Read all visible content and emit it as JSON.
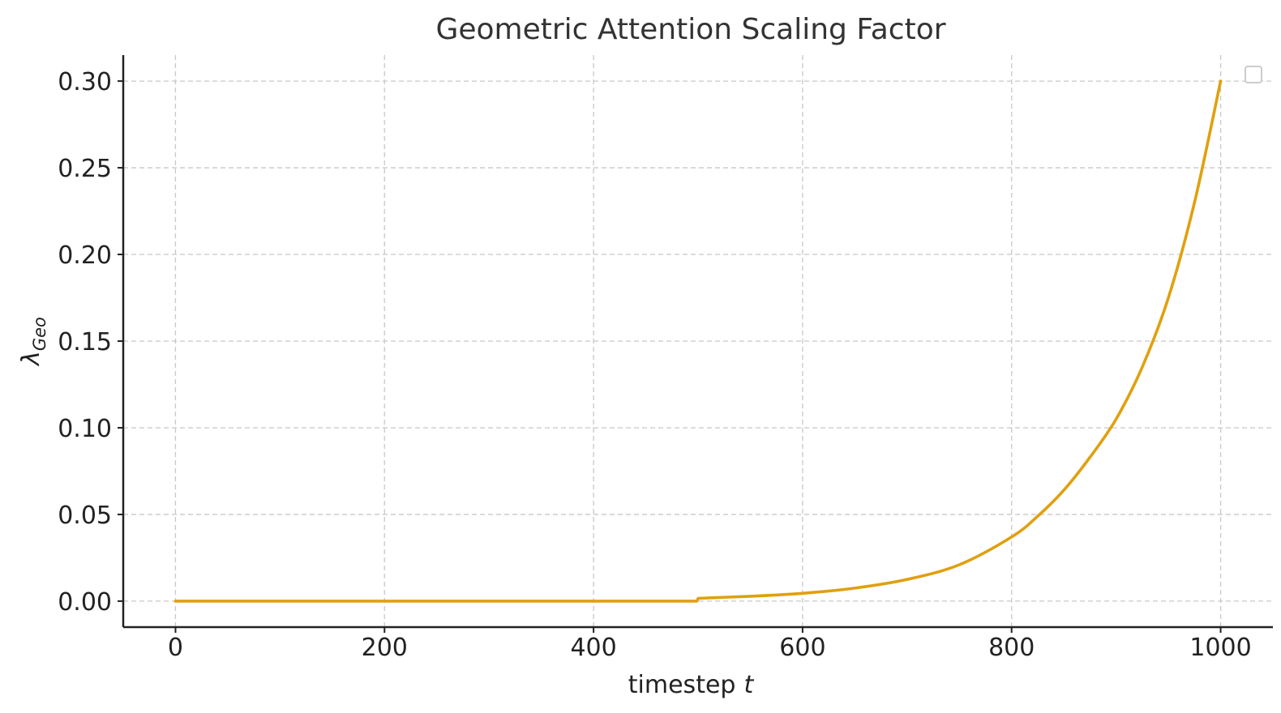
{
  "chart_data": {
    "type": "line",
    "title": "Geometric Attention Scaling Factor",
    "xlabel": "timestep",
    "xlabel_var": "t",
    "ylabel_base": "λ",
    "ylabel_sub": "Geo",
    "xlim": [
      -50,
      1050
    ],
    "ylim": [
      -0.015,
      0.315
    ],
    "xticks": [
      0,
      200,
      400,
      600,
      800,
      1000
    ],
    "yticks": [
      0.0,
      0.05,
      0.1,
      0.15,
      0.2,
      0.25,
      0.3
    ],
    "ytick_labels": [
      "0.00",
      "0.05",
      "0.10",
      "0.15",
      "0.20",
      "0.25",
      "0.30"
    ],
    "grid": true,
    "legend": "top-right (empty)",
    "series": [
      {
        "color": "#E0A00E",
        "x": [
          0,
          100,
          200,
          300,
          400,
          499,
          500,
          550,
          600,
          650,
          700,
          750,
          800,
          825,
          850,
          875,
          900,
          925,
          950,
          975,
          1000
        ],
        "y": [
          0,
          0,
          0,
          0,
          0,
          0,
          0.0016,
          0.0028,
          0.0045,
          0.0075,
          0.0125,
          0.021,
          0.037,
          0.049,
          0.064,
          0.083,
          0.105,
          0.135,
          0.175,
          0.23,
          0.3
        ]
      }
    ]
  }
}
